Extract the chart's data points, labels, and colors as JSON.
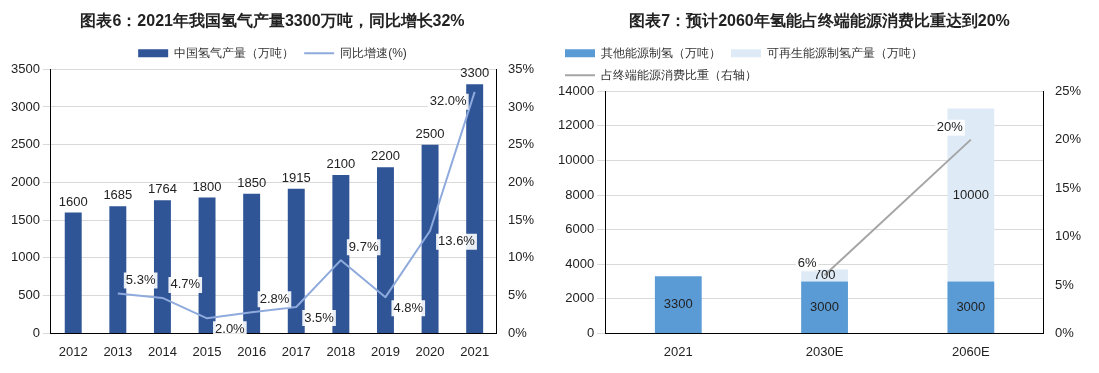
{
  "chart_data": [
    {
      "type": "bar",
      "title": "图表6：2021年我国氢气产量3300万吨，同比增长32%",
      "categories": [
        "2012",
        "2013",
        "2014",
        "2015",
        "2016",
        "2017",
        "2018",
        "2019",
        "2020",
        "2021"
      ],
      "series": [
        {
          "name": "中国氢气产量（万吨）",
          "color": "#2f5597",
          "values": [
            1600,
            1685,
            1764,
            1800,
            1850,
            1915,
            2100,
            2200,
            2500,
            3300
          ]
        },
        {
          "name": "同比增速(%)",
          "type": "line",
          "axis": "y2",
          "color": "#8faadc",
          "values": [
            null,
            5.3,
            4.7,
            2.0,
            2.8,
            3.5,
            9.7,
            4.8,
            13.6,
            32.0
          ],
          "value_labels": [
            null,
            "5.3%",
            "4.7%",
            "2.0%",
            "2.8%",
            "3.5%",
            "9.7%",
            "4.8%",
            "13.6%",
            "32.0%"
          ]
        }
      ],
      "data_labels": true,
      "ylim": [
        0,
        3500
      ],
      "yticks": [
        0,
        500,
        1000,
        1500,
        2000,
        2500,
        3000,
        3500
      ],
      "y2lim": [
        0,
        35
      ],
      "y2ticks": [
        {
          "value": 0,
          "label": "0%"
        },
        {
          "value": 5,
          "label": "5%"
        },
        {
          "value": 10,
          "label": "10%"
        },
        {
          "value": 15,
          "label": "15%"
        },
        {
          "value": 20,
          "label": "20%"
        },
        {
          "value": 25,
          "label": "25%"
        },
        {
          "value": 30,
          "label": "30%"
        },
        {
          "value": 35,
          "label": "35%"
        }
      ],
      "grid": "y",
      "legend": "top",
      "marker": "none"
    },
    {
      "type": "bar",
      "title": "图表7：预计2060年氢能占终端能源消费比重达到20%",
      "categories": [
        "2021",
        "2030E",
        "2060E"
      ],
      "stacked": true,
      "series": [
        {
          "name": "其他能源制氢（万吨）",
          "color": "#5b9bd5",
          "values": [
            3300,
            3000,
            3000
          ]
        },
        {
          "name": "可再生能源制氢产量（万吨）",
          "color": "#deebf7",
          "values": [
            null,
            700,
            10000
          ]
        },
        {
          "name": "占终端能源消费比重（右轴）",
          "type": "line",
          "axis": "y2",
          "color": "#a5a5a5",
          "values": [
            null,
            6,
            20
          ],
          "value_labels": [
            null,
            "6%",
            "20%"
          ]
        }
      ],
      "data_labels": true,
      "ylim": [
        0,
        14000
      ],
      "yticks": [
        0,
        2000,
        4000,
        6000,
        8000,
        10000,
        12000,
        14000
      ],
      "y2lim": [
        0,
        25
      ],
      "y2ticks": [
        {
          "value": 0,
          "label": "0%"
        },
        {
          "value": 5,
          "label": "5%"
        },
        {
          "value": 10,
          "label": "10%"
        },
        {
          "value": 15,
          "label": "15%"
        },
        {
          "value": 20,
          "label": "20%"
        },
        {
          "value": 25,
          "label": "25%"
        }
      ],
      "grid": "y",
      "legend": "top left",
      "marker": "none"
    }
  ]
}
